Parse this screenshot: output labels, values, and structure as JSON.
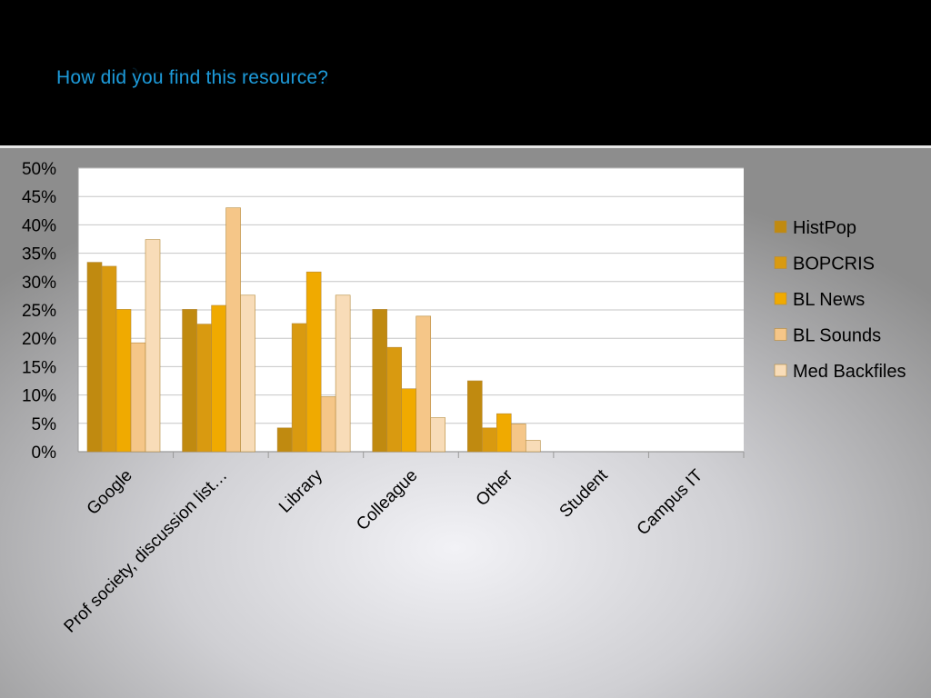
{
  "slide": {
    "title": "How did you find this resource?"
  },
  "colors": {
    "background_top": "#000000",
    "title": "#1d9ad9",
    "plot_background": "#ffffff",
    "gridline": "#c6c6c6"
  },
  "chart_data": {
    "type": "bar",
    "title": "",
    "xlabel": "",
    "ylabel": "",
    "ylim": [
      0,
      0.5
    ],
    "y_ticks": [
      "0%",
      "5%",
      "10%",
      "15%",
      "20%",
      "25%",
      "30%",
      "35%",
      "40%",
      "45%",
      "50%"
    ],
    "grid": true,
    "legend_position": "right",
    "categories": [
      "Google",
      "Prof society, discussion list…",
      "Library",
      "Colleague",
      "Other",
      "Student",
      "Campus IT"
    ],
    "series": [
      {
        "name": "HistPop",
        "color": "#c08a10",
        "values": [
          0.334,
          0.251,
          0.042,
          0.251,
          0.125,
          0,
          0
        ]
      },
      {
        "name": "BOPCRIS",
        "color": "#d99a10",
        "values": [
          0.327,
          0.225,
          0.226,
          0.184,
          0.042,
          0,
          0
        ]
      },
      {
        "name": "BL News",
        "color": "#f0aa00",
        "values": [
          0.251,
          0.258,
          0.317,
          0.111,
          0.067,
          0,
          0
        ]
      },
      {
        "name": "BL Sounds",
        "color": "#f5c688",
        "values": [
          0.192,
          0.43,
          0.097,
          0.239,
          0.049,
          0,
          0
        ]
      },
      {
        "name": "Med Backfiles",
        "color": "#f8dcb8",
        "values": [
          0.374,
          0.276,
          0.276,
          0.06,
          0.02,
          0,
          0
        ]
      }
    ]
  }
}
